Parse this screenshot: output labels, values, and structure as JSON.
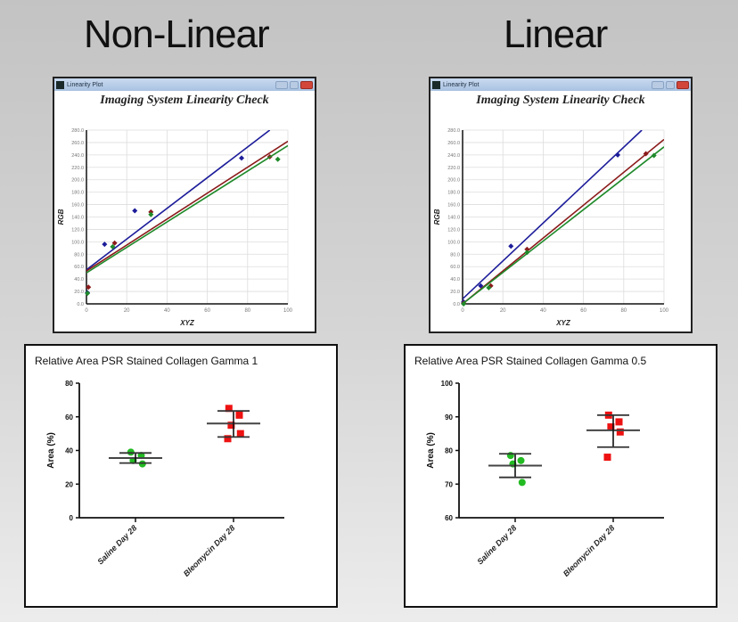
{
  "headings": {
    "left": "Non-Linear",
    "right": "Linear"
  },
  "window": {
    "title": "Linearity Plot",
    "plot_title": "Imaging System Linearity Check"
  },
  "panels": {
    "left_title": "Relative Area PSR  Stained  Collagen Gamma 1",
    "right_title": "Relative Area PSR  Stained  Collagen Gamma 0.5"
  },
  "colors": {
    "blue": "#1c1c9a",
    "red": "#8b1a1a",
    "green": "#1f8a2a",
    "scatter_green": "#22bb22",
    "scatter_red": "#ee1111"
  },
  "chart_data": [
    {
      "type": "scatter",
      "title": "Imaging System Linearity Check",
      "panel": "Non-Linear",
      "xlabel": "XYZ",
      "ylabel": "RGB",
      "xlim": [
        0,
        100
      ],
      "ylim": [
        0,
        280
      ],
      "xticks": [
        0,
        20,
        40,
        60,
        80,
        100
      ],
      "yticks": [
        "0.0",
        "20.0",
        "40.0",
        "60.0",
        "80.0",
        "100.0",
        "120.0",
        "140.0",
        "160.0",
        "180.0",
        "200.0",
        "220.0",
        "240.0",
        "260.0",
        "280.0"
      ],
      "series": [
        {
          "name": "Blue",
          "points": [
            [
              0.5,
              18
            ],
            [
              9,
              96
            ],
            [
              24,
              150
            ],
            [
              77,
              235
            ]
          ],
          "fit": [
            [
              0,
              55
            ],
            [
              91,
              280
            ]
          ]
        },
        {
          "name": "Red",
          "points": [
            [
              1,
              27
            ],
            [
              14,
              98
            ],
            [
              32,
              148
            ],
            [
              91,
              237
            ]
          ],
          "fit": [
            [
              0,
              53
            ],
            [
              100,
              262
            ]
          ]
        },
        {
          "name": "Green",
          "points": [
            [
              0.5,
              17
            ],
            [
              13,
              92
            ],
            [
              32,
              144
            ],
            [
              95,
              233
            ]
          ],
          "fit": [
            [
              0,
              50
            ],
            [
              100,
              255
            ]
          ]
        }
      ]
    },
    {
      "type": "scatter",
      "title": "Imaging System Linearity Check",
      "panel": "Linear",
      "xlabel": "XYZ",
      "ylabel": "RGB",
      "xlim": [
        0,
        100
      ],
      "ylim": [
        0,
        280
      ],
      "xticks": [
        0,
        20,
        40,
        60,
        80,
        100
      ],
      "yticks": [
        "0.0",
        "20.0",
        "40.0",
        "60.0",
        "80.0",
        "100.0",
        "120.0",
        "140.0",
        "160.0",
        "180.0",
        "200.0",
        "220.0",
        "240.0",
        "260.0",
        "280.0"
      ],
      "series": [
        {
          "name": "Blue",
          "points": [
            [
              0.5,
              3
            ],
            [
              9,
              29
            ],
            [
              24,
              93
            ],
            [
              77,
              240
            ]
          ],
          "fit": [
            [
              0,
              8
            ],
            [
              89,
              280
            ]
          ]
        },
        {
          "name": "Red",
          "points": [
            [
              0.5,
              1
            ],
            [
              14,
              29
            ],
            [
              32,
              88
            ],
            [
              91,
              242
            ]
          ],
          "fit": [
            [
              0,
              0
            ],
            [
              100,
              265
            ]
          ]
        },
        {
          "name": "Green",
          "points": [
            [
              0.5,
              0
            ],
            [
              13,
              26
            ],
            [
              32,
              83
            ],
            [
              95,
              239
            ]
          ],
          "fit": [
            [
              0,
              0
            ],
            [
              100,
              253
            ]
          ]
        }
      ]
    },
    {
      "type": "scatter",
      "title": "Relative Area PSR  Stained  Collagen Gamma 1",
      "ylabel": "Area (%)",
      "ylim": [
        0,
        80
      ],
      "yticks": [
        0,
        20,
        40,
        60,
        80
      ],
      "categories": [
        "Saline Day 28",
        "Bleomycin Day 28"
      ],
      "series": [
        {
          "name": "Saline Day 28",
          "values": [
            39,
            37,
            34,
            32
          ],
          "mean": 35.5,
          "sd": [
            32.5,
            38.5
          ]
        },
        {
          "name": "Bleomycin Day 28",
          "values": [
            65,
            61,
            55,
            50,
            47
          ],
          "mean": 56,
          "sd": [
            48,
            63.5
          ]
        }
      ]
    },
    {
      "type": "scatter",
      "title": "Relative Area PSR  Stained  Collagen Gamma 0.5",
      "ylabel": "Area (%)",
      "ylim": [
        60,
        100
      ],
      "yticks": [
        60,
        70,
        80,
        90,
        100
      ],
      "categories": [
        "Saline Day 28",
        "Bleomycin Day 28"
      ],
      "series": [
        {
          "name": "Saline Day 28",
          "values": [
            78.5,
            77,
            76,
            70.5
          ],
          "mean": 75.5,
          "sd": [
            72,
            79
          ]
        },
        {
          "name": "Bleomycin Day 28",
          "values": [
            90.5,
            88.5,
            87,
            85.5,
            78
          ],
          "mean": 86,
          "sd": [
            81,
            90.5
          ]
        }
      ]
    }
  ]
}
